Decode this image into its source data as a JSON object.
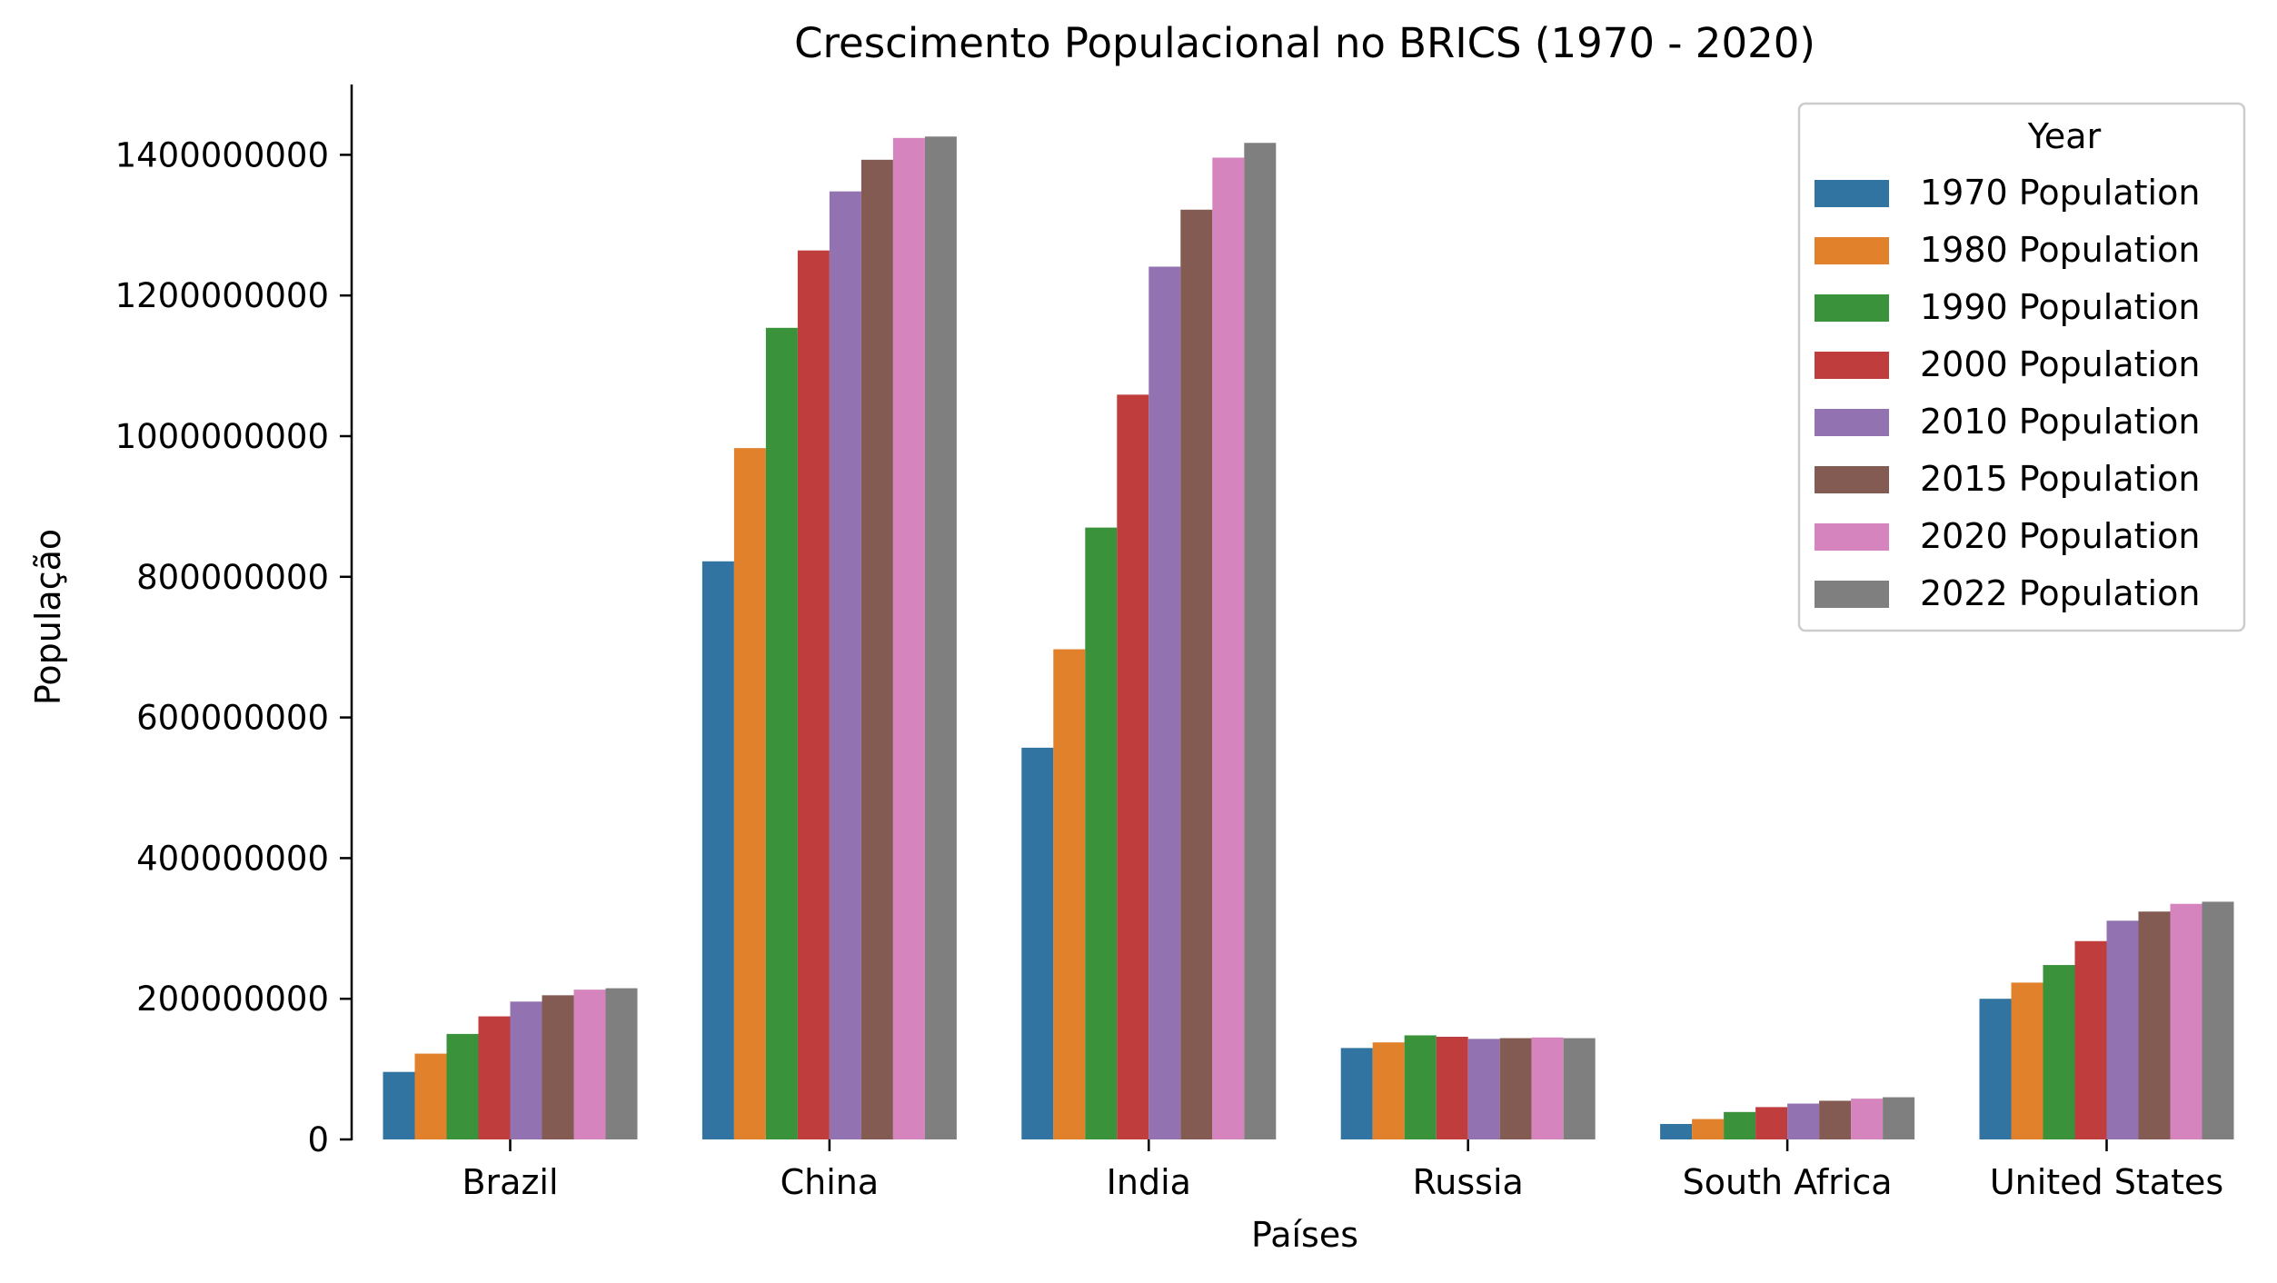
{
  "chart_data": {
    "type": "bar",
    "title": "Crescimento Populacional no BRICS (1970 - 2020)",
    "xlabel": "Países",
    "ylabel": "População",
    "ylim": [
      0,
      1500000000
    ],
    "yticks": [
      0,
      200000000,
      400000000,
      600000000,
      800000000,
      1000000000,
      1200000000,
      1400000000
    ],
    "ytick_labels": [
      "0",
      "200000000",
      "400000000",
      "600000000",
      "800000000",
      "1000000000",
      "1200000000",
      "1400000000"
    ],
    "grid": false,
    "legend": {
      "title": "Year",
      "position": "upper right"
    },
    "categories": [
      "Brazil",
      "China",
      "India",
      "Russia",
      "South Africa",
      "United States"
    ],
    "series": [
      {
        "name": "1970 Population",
        "color": "#3274a1",
        "values": [
          96000000,
          822000000,
          557000000,
          130000000,
          22000000,
          200000000
        ]
      },
      {
        "name": "1980 Population",
        "color": "#e1812c",
        "values": [
          122000000,
          983000000,
          697000000,
          138000000,
          29000000,
          223000000
        ]
      },
      {
        "name": "1990 Population",
        "color": "#3a923a",
        "values": [
          150000000,
          1154000000,
          870000000,
          148000000,
          39000000,
          248000000
        ]
      },
      {
        "name": "2000 Population",
        "color": "#c03d3e",
        "values": [
          175000000,
          1264000000,
          1059000000,
          146000000,
          46000000,
          282000000
        ]
      },
      {
        "name": "2010 Population",
        "color": "#9372b2",
        "values": [
          196000000,
          1348000000,
          1241000000,
          143000000,
          51000000,
          311000000
        ]
      },
      {
        "name": "2015 Population",
        "color": "#845b53",
        "values": [
          205000000,
          1393000000,
          1322000000,
          144000000,
          55000000,
          324000000
        ]
      },
      {
        "name": "2020 Population",
        "color": "#d684bd",
        "values": [
          213000000,
          1424000000,
          1396000000,
          145000000,
          58000000,
          335000000
        ]
      },
      {
        "name": "2022 Population",
        "color": "#7f7f7f",
        "values": [
          215000000,
          1426000000,
          1417000000,
          144000000,
          60000000,
          338000000
        ]
      }
    ]
  }
}
